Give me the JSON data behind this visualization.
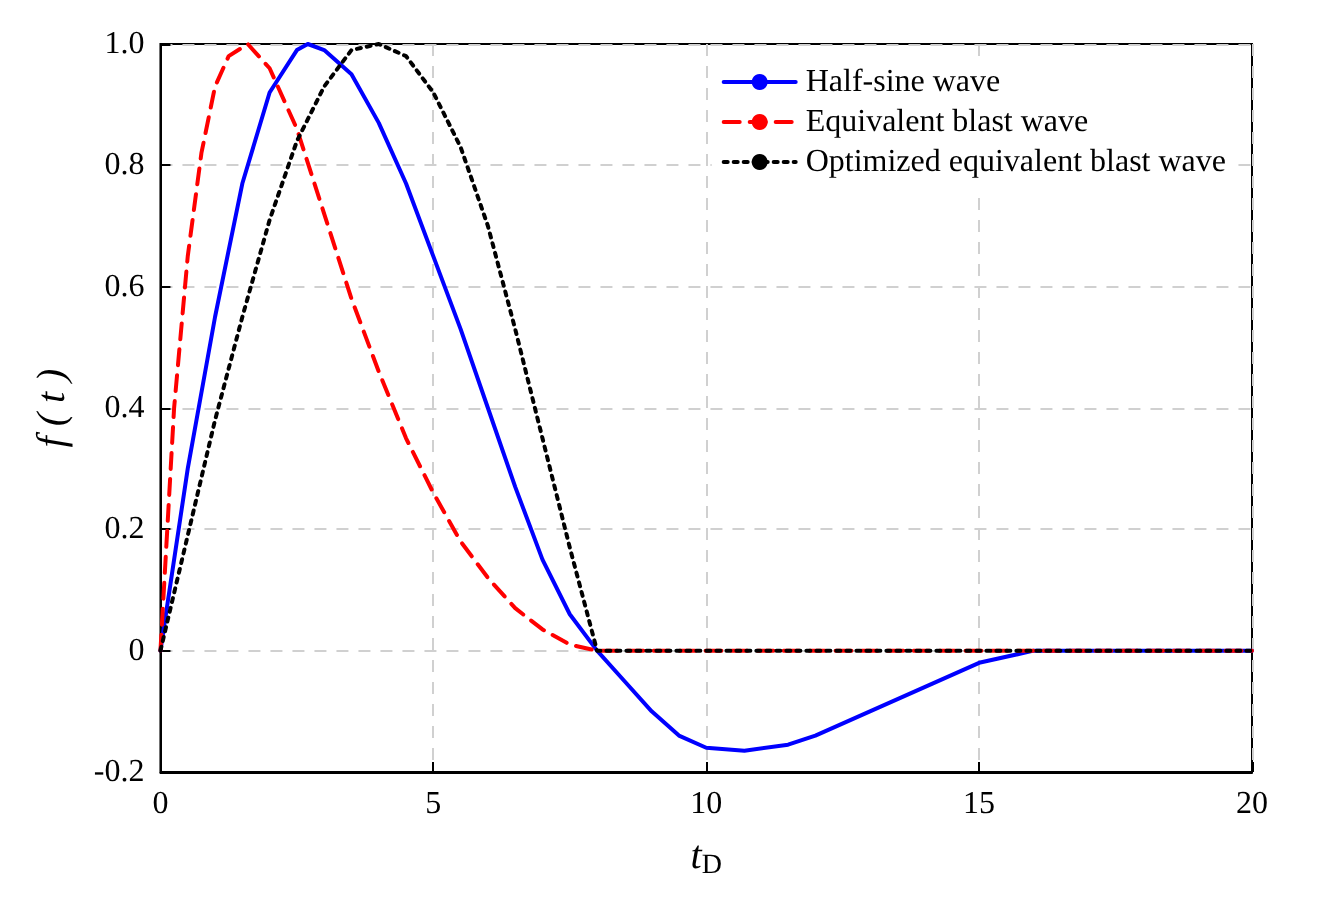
{
  "chart_data": {
    "type": "line",
    "xlabel": "t$_{D}$",
    "ylabel": "f ( t )",
    "xlim": [
      0,
      20
    ],
    "xticks": [
      0,
      5,
      10,
      15,
      20
    ],
    "ylim": [
      -0.2,
      1
    ],
    "yticks": [
      -0.2,
      0,
      0.2,
      0.4,
      0.6,
      0.8,
      {
        "value": 1,
        "label": "1.0"
      }
    ],
    "grid": true,
    "legend": "top right",
    "marker": "none",
    "series": [
      {
        "name": "Half-sine wave",
        "color": "#0000ff",
        "line_style": "solid",
        "x": [
          0,
          0.5,
          1,
          1.5,
          2,
          2.5,
          2.7,
          3,
          3.5,
          4,
          4.5,
          5,
          5.5,
          6,
          6.5,
          7,
          7.5,
          8,
          8.5,
          9,
          9.5,
          10,
          10.7,
          11.5,
          12,
          13,
          14,
          15,
          16,
          20
        ],
        "values": [
          0,
          0.3,
          0.55,
          0.77,
          0.92,
          0.99,
          1.0,
          0.99,
          0.95,
          0.87,
          0.77,
          0.65,
          0.53,
          0.4,
          0.27,
          0.15,
          0.06,
          0,
          -0.05,
          -0.1,
          -0.14,
          -0.16,
          -0.165,
          -0.155,
          -0.14,
          -0.1,
          -0.06,
          -0.02,
          0,
          0
        ]
      },
      {
        "name": "Equivalent blast wave",
        "color": "#ff0000",
        "line_style": "dashed",
        "x": [
          0,
          0.25,
          0.5,
          0.75,
          1,
          1.25,
          1.6,
          2,
          2.5,
          3,
          3.5,
          4,
          4.5,
          5,
          5.5,
          6,
          6.5,
          7,
          7.5,
          8,
          20
        ],
        "values": [
          0,
          0.4,
          0.65,
          0.82,
          0.93,
          0.98,
          1.0,
          0.96,
          0.86,
          0.72,
          0.58,
          0.46,
          0.35,
          0.26,
          0.18,
          0.12,
          0.07,
          0.035,
          0.01,
          0,
          0
        ]
      },
      {
        "name": "Optimized equivalent blast wave",
        "color": "#000000",
        "line_style": "dotted",
        "x": [
          0,
          0.5,
          1,
          1.5,
          2,
          2.5,
          3,
          3.5,
          4,
          4.5,
          5,
          5.5,
          6,
          6.5,
          7,
          7.5,
          8,
          20
        ],
        "values": [
          0,
          0.19,
          0.38,
          0.55,
          0.71,
          0.84,
          0.93,
          0.99,
          1.0,
          0.98,
          0.92,
          0.83,
          0.7,
          0.53,
          0.35,
          0.17,
          0,
          0
        ]
      }
    ]
  }
}
